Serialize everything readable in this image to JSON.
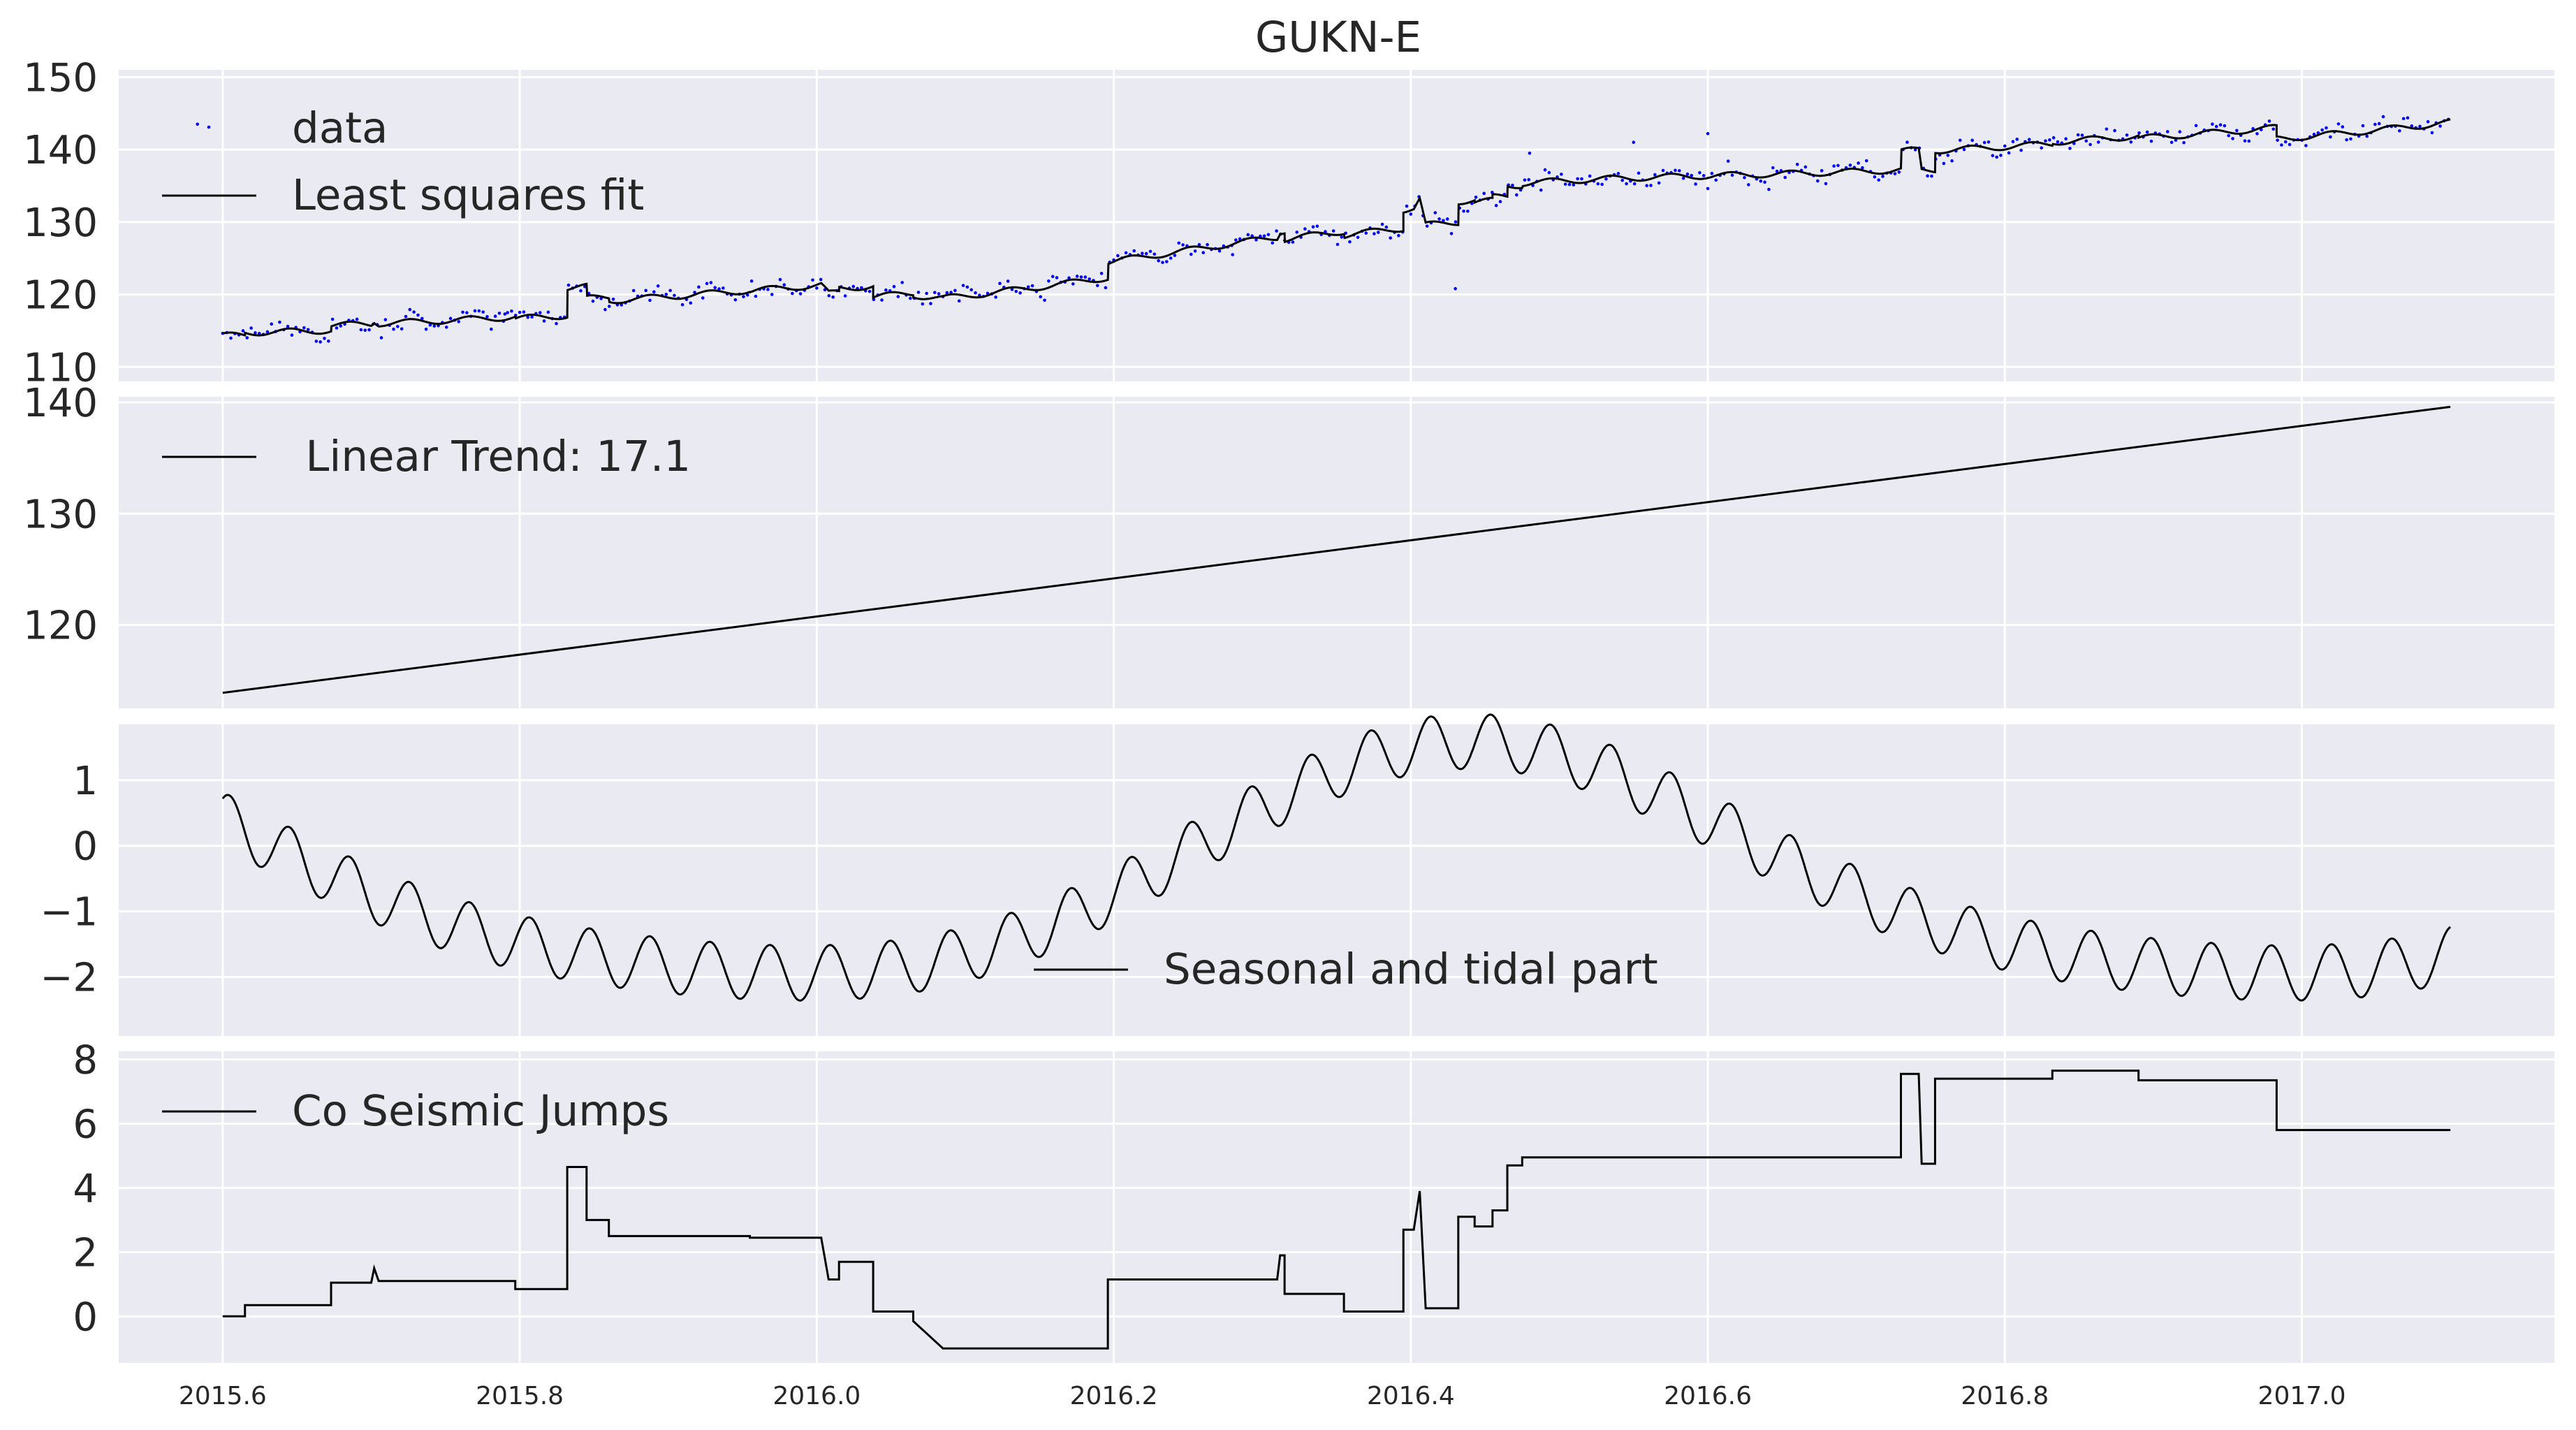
{
  "figure": {
    "title": "GUKN-E",
    "colors": {
      "panel_bg": "#EAEAF2",
      "grid": "#FFFFFF",
      "line": "#000000",
      "data_points": "#0000FF",
      "text": "#262626"
    }
  },
  "chart_data": [
    {
      "type": "scatter",
      "title": "GUKN-E",
      "xlabel": "",
      "ylabel": "",
      "xlim": [
        2015.53,
        2017.17
      ],
      "ylim": [
        108,
        151
      ],
      "yticks": [
        110,
        120,
        130,
        140,
        150
      ],
      "ytick_labels": [
        "110",
        "120",
        "130",
        "140",
        "150"
      ],
      "xticks": [
        2015.6,
        2015.8,
        2016.0,
        2016.2,
        2016.4,
        2016.6,
        2016.8,
        2017.0
      ],
      "legend": {
        "position": "top-left",
        "entries": [
          {
            "label": "data",
            "style": "point"
          },
          {
            "label": "Least squares fit",
            "style": "line"
          }
        ]
      },
      "series": [
        {
          "name": "data",
          "kind": "scatter",
          "x_start": 2015.6,
          "x_step": 0.002739726,
          "noise_amplitude": 1.6,
          "outliers": [
            [
              2015.583,
              143.5
            ],
            [
              2015.79,
              117.3
            ],
            [
              2016.28,
              125.5
            ],
            [
              2016.43,
              120.8
            ],
            [
              2016.55,
              141.0
            ],
            [
              2016.6,
              142.2
            ],
            [
              2016.48,
              139.5
            ]
          ],
          "note": "noisy daily samples scattered about the least squares fit curve"
        },
        {
          "name": "Least squares fit",
          "kind": "line",
          "composition": "sum of Linear Trend, Seasonal and tidal part, and Co Seismic Jumps"
        }
      ]
    },
    {
      "type": "line",
      "xlim": [
        2015.53,
        2017.17
      ],
      "ylim": [
        112.5,
        140.5
      ],
      "yticks": [
        120,
        130,
        140
      ],
      "ytick_labels": [
        "120",
        "130",
        "140"
      ],
      "legend": {
        "position": "top-left",
        "entries": [
          {
            "label": " Linear Trend: 17.1",
            "style": "line"
          }
        ]
      },
      "series": [
        {
          "name": "Linear Trend",
          "x": [
            2015.6,
            2017.1
          ],
          "y": [
            113.9,
            139.6
          ],
          "rate": 17.1
        }
      ]
    },
    {
      "type": "line",
      "xlim": [
        2015.53,
        2017.17
      ],
      "ylim": [
        -2.9,
        1.85
      ],
      "yticks": [
        -2,
        -1,
        0,
        1
      ],
      "ytick_labels": [
        "−2",
        "−1",
        "0",
        "1"
      ],
      "legend": {
        "position": "lower-center",
        "entries": [
          {
            "label": "Seasonal and tidal part",
            "style": "line"
          }
        ]
      },
      "series": [
        {
          "name": "Seasonal and tidal part",
          "components": {
            "offset": -0.45,
            "annual": {
              "amplitude": 1.75,
              "period_years": 1.0,
              "phase_years": 0.2
            },
            "semiannual": {
              "amplitude": 0.3,
              "period_years": 0.5,
              "phase_years": 0.3
            },
            "tidal": {
              "amplitude": 0.42,
              "period_days": 14.77
            }
          }
        }
      ]
    },
    {
      "type": "line",
      "step": true,
      "xlim": [
        2015.53,
        2017.17
      ],
      "ylim": [
        -1.45,
        8.25
      ],
      "yticks": [
        0,
        2,
        4,
        6,
        8
      ],
      "ytick_labels": [
        "0",
        "2",
        "4",
        "6",
        "8"
      ],
      "legend": {
        "position": "top-left",
        "entries": [
          {
            "label": "Co Seismic Jumps",
            "style": "line"
          }
        ]
      },
      "series": [
        {
          "name": "Co Seismic Jumps",
          "x": [
            2015.6,
            2015.615,
            2015.615,
            2015.673,
            2015.673,
            2015.7,
            2015.702,
            2015.705,
            2015.705,
            2015.797,
            2015.797,
            2015.832,
            2015.832,
            2015.845,
            2015.845,
            2015.86,
            2015.86,
            2015.955,
            2015.955,
            2016.003,
            2016.008,
            2016.015,
            2016.015,
            2016.038,
            2016.038,
            2016.065,
            2016.065,
            2016.085,
            2016.085,
            2016.196,
            2016.196,
            2016.31,
            2016.312,
            2016.315,
            2016.315,
            2016.355,
            2016.355,
            2016.395,
            2016.395,
            2016.402,
            2016.406,
            2016.41,
            2016.41,
            2016.432,
            2016.432,
            2016.443,
            2016.443,
            2016.455,
            2016.455,
            2016.465,
            2016.465,
            2016.475,
            2016.475,
            2016.56,
            2016.56,
            2016.73,
            2016.73,
            2016.742,
            2016.744,
            2016.753,
            2016.753,
            2016.76,
            2016.762,
            2016.832,
            2016.832,
            2016.89,
            2016.89,
            2016.983,
            2016.983,
            2017.1
          ],
          "y": [
            0,
            0,
            0.35,
            0.35,
            1.05,
            1.05,
            1.5,
            1.1,
            1.1,
            1.1,
            0.85,
            0.85,
            4.65,
            4.65,
            3.0,
            3.0,
            2.5,
            2.5,
            2.45,
            2.45,
            1.15,
            1.15,
            1.7,
            1.7,
            0.15,
            0.15,
            -0.15,
            -1.0,
            -1.0,
            -1.0,
            1.15,
            1.15,
            1.9,
            1.9,
            0.7,
            0.7,
            0.15,
            0.15,
            2.7,
            2.7,
            3.9,
            0.25,
            0.25,
            0.25,
            3.1,
            3.1,
            2.8,
            2.8,
            3.3,
            3.3,
            4.7,
            4.7,
            4.95,
            4.95,
            4.95,
            4.95,
            7.55,
            7.55,
            4.75,
            4.75,
            7.4,
            7.4,
            7.4,
            7.4,
            7.65,
            7.65,
            7.35,
            7.35,
            5.8,
            5.8
          ]
        }
      ]
    }
  ]
}
